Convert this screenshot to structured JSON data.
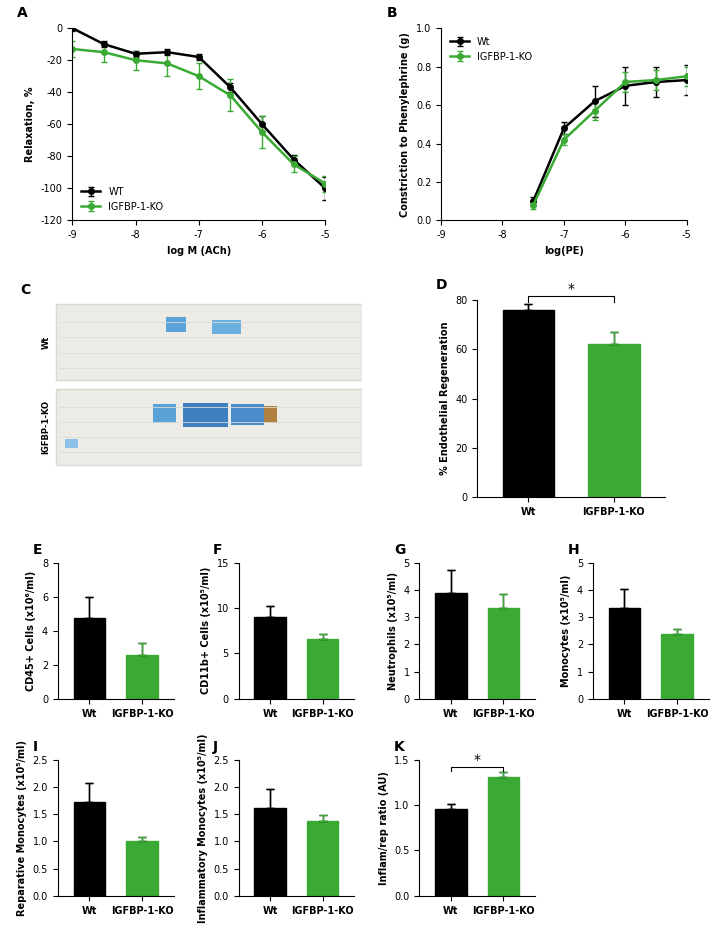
{
  "chart_data": [
    {
      "type": "line",
      "title": "A",
      "xlabel": "log M (ACh)",
      "ylabel": "Relaxation, %",
      "x": [
        -9,
        -8.5,
        -8,
        -7.5,
        -7,
        -6.5,
        -6,
        -5.5,
        -5
      ],
      "series": [
        {
          "name": "WT",
          "color": "#000000",
          "marker": "o",
          "values": [
            0,
            -10,
            -16,
            -15,
            -18,
            -37,
            -60,
            -82,
            -100
          ],
          "error": [
            2,
            2,
            2,
            2,
            2,
            3,
            5,
            3,
            7
          ]
        },
        {
          "name": "IGFBP-1-KO",
          "color": "#3aaa35",
          "marker": "o",
          "values": [
            -13,
            -15,
            -20,
            -22,
            -30,
            -42,
            -65,
            -85,
            -97
          ],
          "error": [
            5,
            6,
            6,
            8,
            8,
            10,
            10,
            5,
            5
          ]
        }
      ],
      "xlim": [
        -9,
        -5
      ],
      "xticks": [
        -9,
        -8,
        -7,
        -6,
        -5
      ],
      "ylim": [
        -120,
        0
      ],
      "yticks": [
        -120,
        -100,
        -80,
        -60,
        -40,
        -20,
        0
      ],
      "legend": "lower left"
    },
    {
      "type": "line",
      "title": "B",
      "xlabel": "log(PE)",
      "ylabel": "Constriction to Phenylephrine (g)",
      "x": [
        -7.5,
        -7,
        -6.5,
        -6,
        -5.5,
        -5
      ],
      "series": [
        {
          "name": "Wt",
          "color": "#000000",
          "marker": "o",
          "values": [
            0.1,
            0.48,
            0.62,
            0.7,
            0.72,
            0.73
          ],
          "error": [
            0.02,
            0.03,
            0.08,
            0.1,
            0.08,
            0.08
          ]
        },
        {
          "name": "IGFBP-1-KO",
          "color": "#3aaa35",
          "marker": "o",
          "values": [
            0.08,
            0.42,
            0.57,
            0.72,
            0.73,
            0.75
          ],
          "error": [
            0.02,
            0.03,
            0.05,
            0.05,
            0.05,
            0.05
          ]
        }
      ],
      "xlim": [
        -9,
        -5
      ],
      "xticks": [
        -9,
        -8,
        -7,
        -6,
        -5
      ],
      "ylim": [
        0.0,
        1.0
      ],
      "yticks": [
        0.0,
        0.2,
        0.4,
        0.6,
        0.8,
        1.0
      ],
      "legend": "upper left"
    },
    {
      "type": "image",
      "title": "C",
      "categories": [
        "Wt",
        "IGFBP-1-KO"
      ],
      "tick_labels": false
    },
    {
      "type": "bar",
      "title": "D",
      "ylabel": "% Endothelial Regeneration",
      "categories": [
        "Wt",
        "IGFBP-1-KO"
      ],
      "values": [
        76,
        62
      ],
      "error": [
        2.5,
        5
      ],
      "colors": [
        "#000000",
        "#3aaa35"
      ],
      "ylim": [
        0,
        80
      ],
      "yticks": [
        0,
        20,
        40,
        60,
        80
      ],
      "annotations": [
        "*"
      ]
    },
    {
      "type": "bar",
      "title": "E",
      "ylabel": "CD45+ Cells (x10⁶/ml)",
      "categories": [
        "Wt",
        "IGFBP-1-KO"
      ],
      "values": [
        4.75,
        2.55
      ],
      "error": [
        1.25,
        0.75
      ],
      "colors": [
        "#000000",
        "#3aaa35"
      ],
      "ylim": [
        0,
        8
      ],
      "yticks": [
        0,
        2,
        4,
        6,
        8
      ]
    },
    {
      "type": "bar",
      "title": "F",
      "ylabel": "CD11b+ Cells (x10⁵/ml)",
      "categories": [
        "Wt",
        "IGFBP-1-KO"
      ],
      "values": [
        9.0,
        6.6
      ],
      "error": [
        1.2,
        0.6
      ],
      "colors": [
        "#000000",
        "#3aaa35"
      ],
      "ylim": [
        0,
        15
      ],
      "yticks": [
        0,
        5,
        10,
        15
      ]
    },
    {
      "type": "bar",
      "title": "G",
      "ylabel": "Neutrophils (x10⁵/ml)",
      "categories": [
        "Wt",
        "IGFBP-1-KO"
      ],
      "values": [
        3.9,
        3.35
      ],
      "error": [
        0.85,
        0.5
      ],
      "colors": [
        "#000000",
        "#3aaa35"
      ],
      "ylim": [
        0,
        5
      ],
      "yticks": [
        0,
        1,
        2,
        3,
        4,
        5
      ]
    },
    {
      "type": "bar",
      "title": "H",
      "ylabel": "Monocytes (x10⁵/ml)",
      "categories": [
        "Wt",
        "IGFBP-1-KO"
      ],
      "values": [
        3.35,
        2.4
      ],
      "error": [
        0.7,
        0.15
      ],
      "colors": [
        "#000000",
        "#3aaa35"
      ],
      "ylim": [
        0,
        5
      ],
      "yticks": [
        0,
        1,
        2,
        3,
        4,
        5
      ]
    },
    {
      "type": "bar",
      "title": "I",
      "ylabel": "Reparative Monocytes (x10⁵/ml)",
      "categories": [
        "Wt",
        "IGFBP-1-KO"
      ],
      "values": [
        1.73,
        1.0
      ],
      "error": [
        0.35,
        0.08
      ],
      "colors": [
        "#000000",
        "#3aaa35"
      ],
      "ylim": [
        0.0,
        2.5
      ],
      "yticks": [
        0.0,
        0.5,
        1.0,
        1.5,
        2.0,
        2.5
      ]
    },
    {
      "type": "bar",
      "title": "J",
      "ylabel": "Inflammatory Monocytes (x10⁵/ml)",
      "categories": [
        "Wt",
        "IGFBP-1-KO"
      ],
      "values": [
        1.62,
        1.38
      ],
      "error": [
        0.35,
        0.1
      ],
      "colors": [
        "#000000",
        "#3aaa35"
      ],
      "ylim": [
        0.0,
        2.5
      ],
      "yticks": [
        0.0,
        0.5,
        1.0,
        1.5,
        2.0,
        2.5
      ]
    },
    {
      "type": "bar",
      "title": "K",
      "ylabel": "Inflam/rep ratio (AU)",
      "categories": [
        "Wt",
        "IGFBP-1-KO"
      ],
      "values": [
        0.96,
        1.31
      ],
      "error": [
        0.05,
        0.05
      ],
      "colors": [
        "#000000",
        "#3aaa35"
      ],
      "ylim": [
        0.0,
        1.5
      ],
      "yticks": [
        0.0,
        0.5,
        1.0,
        1.5
      ],
      "annotations": [
        "*"
      ]
    }
  ]
}
